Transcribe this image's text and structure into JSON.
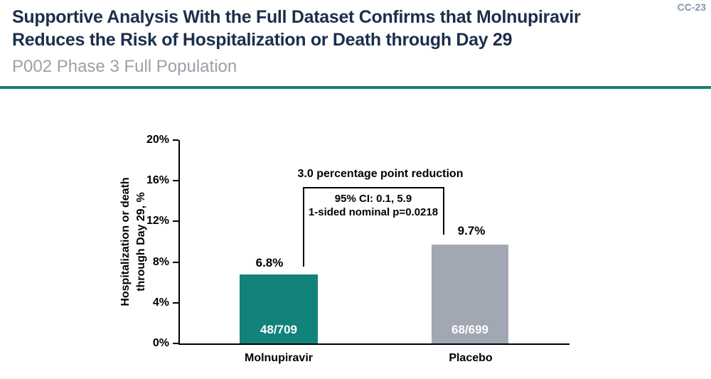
{
  "header": {
    "code": "CC-23",
    "title_line1": "Supportive Analysis With the Full Dataset Confirms that Molnupiravir",
    "title_line2": "Reduces the Risk of Hospitalization or Death through Day 29",
    "subtitle": "P002 Phase 3 Full Population"
  },
  "colors": {
    "accent_teal": "#17807A",
    "bar_teal": "#12837B",
    "bar_gray": "#A1A8B3",
    "title_navy": "#1B2F4B",
    "subtitle_gray": "#99A1A9",
    "code_slate": "#8496A9"
  },
  "chart_data": {
    "type": "bar",
    "title": "",
    "xlabel": "",
    "ylabel": "Hospitalization or death through Day 29, %",
    "ylabel_line1": "Hospitalization or death",
    "ylabel_line2": "through Day 29, %",
    "ylim": [
      0,
      20
    ],
    "ytick_labels": [
      "20%",
      "16%",
      "12%",
      "8%",
      "4%",
      "0%"
    ],
    "grid": "off",
    "legend": "none",
    "categories": [
      "Molnupiravir",
      "Placebo"
    ],
    "values": [
      6.8,
      9.7
    ],
    "value_labels": [
      "6.8%",
      "9.7%"
    ],
    "count_labels": [
      "48/709",
      "68/699"
    ],
    "annotation": {
      "headline": "3.0 percentage point reduction",
      "ci_line": "95% CI: 0.1, 5.9",
      "p_line": "1-sided nominal p=0.0218"
    }
  }
}
